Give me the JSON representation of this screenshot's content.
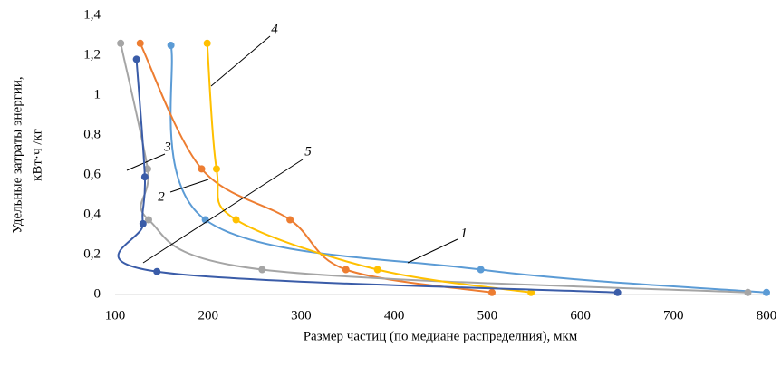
{
  "chart_data": {
    "type": "scatter",
    "x_label": "Размер частиц (по медиане распределния), мкм",
    "y_label": [
      "Удельные затраты энергии,",
      "кВт·ч /кг"
    ],
    "xlim": [
      100,
      800
    ],
    "ylim": [
      0,
      1.4
    ],
    "xticks": [
      100,
      200,
      300,
      400,
      500,
      600,
      700,
      800
    ],
    "yticks": [
      0,
      {
        "value": 0.2,
        "label": "0,2"
      },
      {
        "value": 0.4,
        "label": "0,4"
      },
      {
        "value": 0.6,
        "label": "0,6"
      },
      {
        "value": 0.8,
        "label": "0,8"
      },
      1,
      {
        "value": 1.2,
        "label": "1,2"
      },
      {
        "value": 1.4,
        "label": "1,4"
      }
    ],
    "grid": false,
    "series": [
      {
        "name": "1",
        "color": "#5b9bd5",
        "x": [
          160,
          197,
          493,
          800
        ],
        "values": [
          1.25,
          0.375,
          0.125,
          0.01
        ]
      },
      {
        "name": "2",
        "color": "#ed7d31",
        "x": [
          127,
          193,
          288,
          348,
          505
        ],
        "values": [
          1.26,
          0.63,
          0.375,
          0.125,
          0.01
        ]
      },
      {
        "name": "3",
        "color": "#a5a5a5",
        "x": [
          106,
          135,
          136,
          258,
          780
        ],
        "values": [
          1.26,
          0.63,
          0.375,
          0.125,
          0.01
        ]
      },
      {
        "name": "4",
        "color": "#ffc000",
        "x": [
          199,
          209,
          230,
          382,
          547
        ],
        "values": [
          1.26,
          0.63,
          0.375,
          0.125,
          0.01
        ]
      },
      {
        "name": "5",
        "color": "#3a5ca8",
        "x": [
          123,
          132,
          130,
          145,
          640
        ],
        "values": [
          1.18,
          0.59,
          0.355,
          0.115,
          0.01
        ]
      }
    ]
  }
}
